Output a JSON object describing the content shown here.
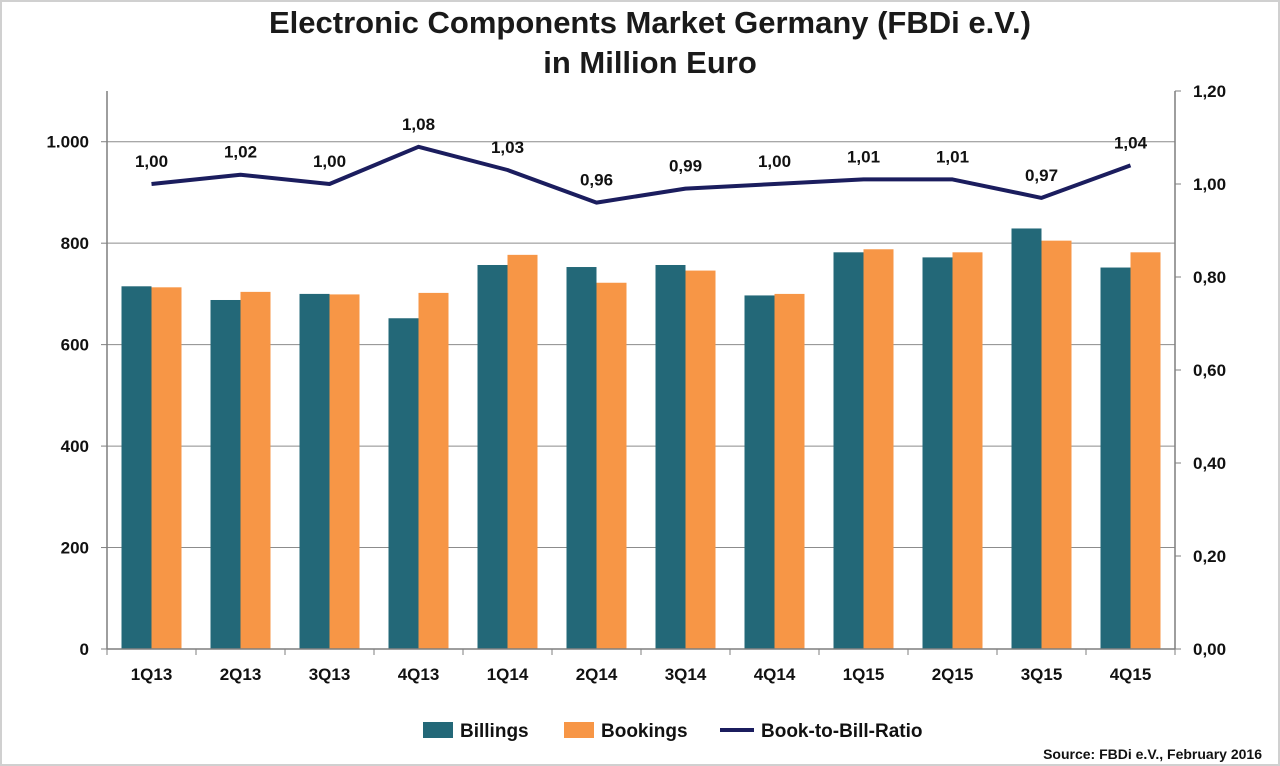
{
  "chart_data": {
    "type": "bar",
    "title": [
      "Electronic Components Market Germany (FBDi e.V.)",
      "in Million Euro"
    ],
    "categories": [
      "1Q13",
      "2Q13",
      "3Q13",
      "4Q13",
      "1Q14",
      "2Q14",
      "3Q14",
      "4Q14",
      "1Q15",
      "2Q15",
      "3Q15",
      "4Q15"
    ],
    "series": [
      {
        "name": "Billings",
        "type": "bar",
        "axis": "left",
        "color": "#236878",
        "values": [
          715,
          688,
          700,
          652,
          757,
          753,
          757,
          697,
          782,
          772,
          829,
          752
        ]
      },
      {
        "name": "Bookings",
        "type": "bar",
        "axis": "left",
        "color": "#f79646",
        "values": [
          713,
          704,
          699,
          702,
          777,
          722,
          746,
          700,
          788,
          782,
          805,
          782
        ]
      },
      {
        "name": "Book-to-Bill-Ratio",
        "type": "line",
        "axis": "right",
        "color": "#1b1d5e",
        "values": [
          1.0,
          1.02,
          1.0,
          1.08,
          1.03,
          0.96,
          0.99,
          1.0,
          1.01,
          1.01,
          0.97,
          1.04
        ],
        "labels": [
          "1,00",
          "1,02",
          "1,00",
          "1,08",
          "1,03",
          "0,96",
          "0,99",
          "1,00",
          "1,01",
          "1,01",
          "0,97",
          "1,04"
        ]
      }
    ],
    "y_left": {
      "ylim": [
        0,
        1100
      ],
      "ticks": [
        0,
        200,
        400,
        600,
        800,
        1000
      ],
      "tick_labels": [
        "0",
        "200",
        "400",
        "600",
        "800",
        "1.000"
      ]
    },
    "y_right": {
      "ylim": [
        0,
        1.2
      ],
      "ticks": [
        0,
        0.2,
        0.4,
        0.6,
        0.8,
        1.0,
        1.2
      ],
      "tick_labels": [
        "0,00",
        "0,20",
        "0,40",
        "0,60",
        "0,80",
        "1,00",
        "1,20"
      ]
    },
    "grid": true,
    "legend_position": "bottom",
    "source": "Source: FBDi e.V., February 2016"
  }
}
